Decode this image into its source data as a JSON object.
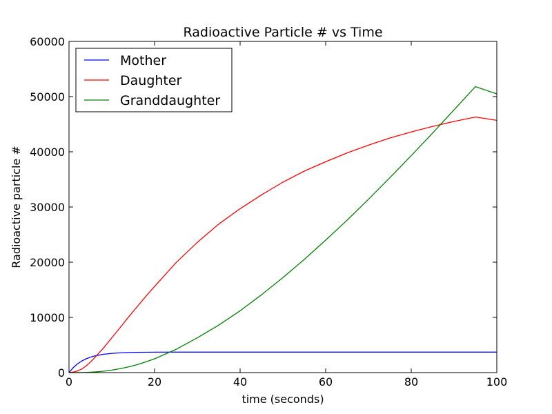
{
  "chart_data": {
    "type": "line",
    "title": "Radioactive Particle # vs Time",
    "xlabel": "time (seconds)",
    "ylabel": "Radioactive particle #",
    "xlim": [
      0,
      100
    ],
    "ylim": [
      0,
      60000
    ],
    "xticks": [
      0,
      20,
      40,
      60,
      80,
      100
    ],
    "yticks": [
      0,
      10000,
      20000,
      30000,
      40000,
      50000,
      60000
    ],
    "grid": false,
    "legend_position": "top-left",
    "x": [
      0,
      1,
      2,
      3,
      4,
      5,
      6,
      8,
      10,
      12,
      14,
      16,
      18,
      20,
      25,
      30,
      35,
      40,
      45,
      50,
      55,
      60,
      65,
      70,
      75,
      80,
      85,
      90,
      95,
      100
    ],
    "series": [
      {
        "name": "Mother",
        "color": "#0000ff",
        "values": [
          0,
          904,
          1589,
          2108,
          2500,
          2797,
          3022,
          3317,
          3486,
          3583,
          3639,
          3671,
          3689,
          3700,
          3710,
          3712,
          3712,
          3712,
          3712,
          3712,
          3712,
          3712,
          3712,
          3712,
          3712,
          3712,
          3712,
          3712,
          3712,
          3712
        ]
      },
      {
        "name": "Daughter",
        "color": "#ff0000",
        "values": [
          0,
          100,
          300,
          650,
          1200,
          1900,
          2700,
          4400,
          6300,
          8200,
          10150,
          12000,
          13850,
          15600,
          19900,
          23600,
          26900,
          29700,
          32200,
          34500,
          36500,
          38200,
          39800,
          41200,
          42500,
          43600,
          44600,
          45500,
          46300,
          45700
        ]
      },
      {
        "name": "Granddaughter",
        "color": "#008000",
        "values": [
          0,
          0,
          5,
          15,
          35,
          70,
          120,
          250,
          450,
          720,
          1050,
          1450,
          1950,
          2500,
          4200,
          6300,
          8600,
          11200,
          14100,
          17200,
          20500,
          24000,
          27600,
          31400,
          35300,
          39300,
          43400,
          47600,
          51800,
          50500
        ]
      }
    ]
  }
}
